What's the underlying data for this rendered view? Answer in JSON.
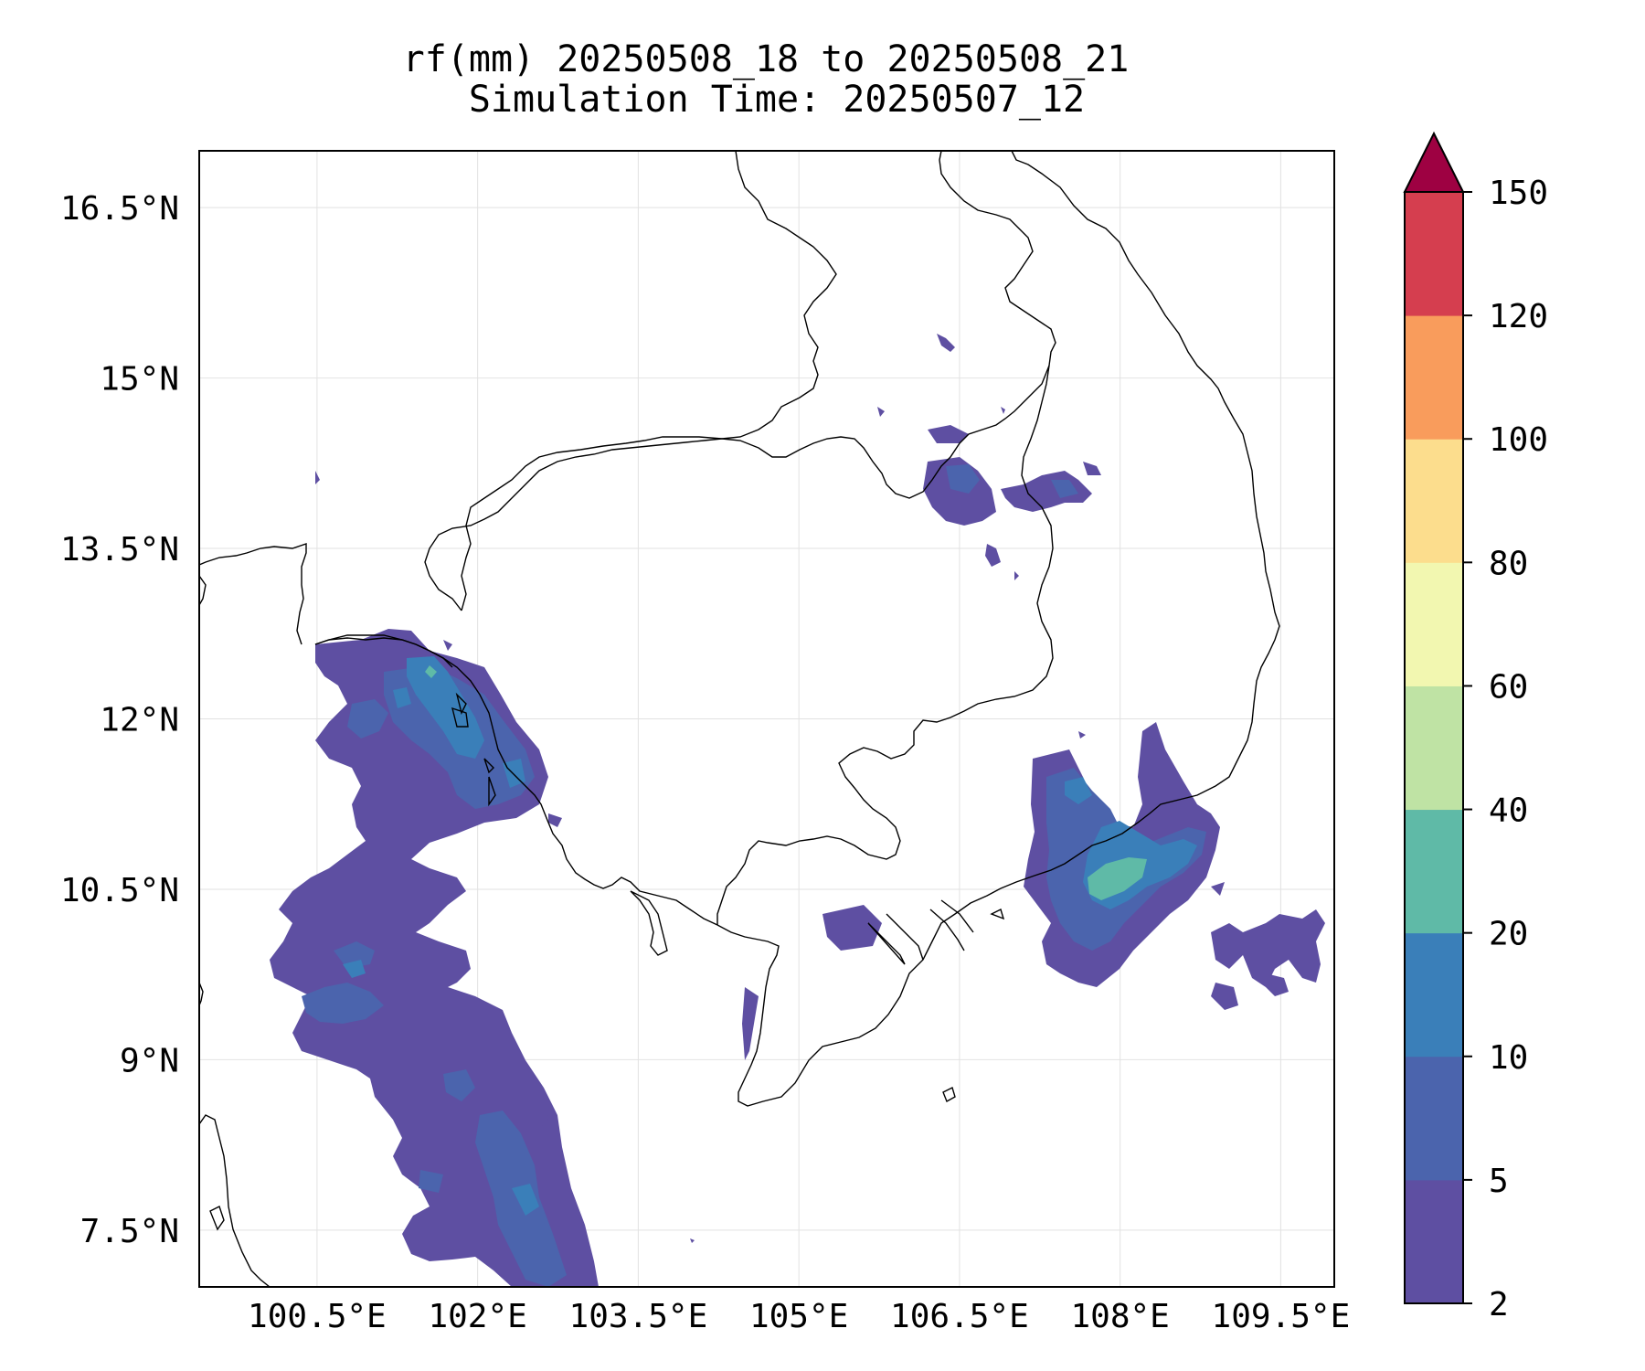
{
  "title": {
    "line1": "rf(mm) 20250508_18 to 20250508_21",
    "line2": "Simulation Time: 20250507_12"
  },
  "map": {
    "lon_range": [
      99.4,
      110.0
    ],
    "lat_range": [
      7.0,
      17.0
    ],
    "lon_ticks": [
      {
        "value": 100.5,
        "label": "100.5°E"
      },
      {
        "value": 102.0,
        "label": "102°E"
      },
      {
        "value": 103.5,
        "label": "103.5°E"
      },
      {
        "value": 105.0,
        "label": "105°E"
      },
      {
        "value": 106.5,
        "label": "106.5°E"
      },
      {
        "value": 108.0,
        "label": "108°E"
      },
      {
        "value": 109.5,
        "label": "109.5°E"
      }
    ],
    "lat_ticks": [
      {
        "value": 16.5,
        "label": "16.5°N"
      },
      {
        "value": 15.0,
        "label": "15°N"
      },
      {
        "value": 13.5,
        "label": "13.5°N"
      },
      {
        "value": 12.0,
        "label": "12°N"
      },
      {
        "value": 10.5,
        "label": "10.5°N"
      },
      {
        "value": 9.0,
        "label": "9°N"
      },
      {
        "value": 7.5,
        "label": "7.5°N"
      }
    ],
    "grid": true
  },
  "colorbar": {
    "levels": [
      {
        "label": "2",
        "color": "#5e4fa2"
      },
      {
        "label": "5",
        "color": "#4b64ad"
      },
      {
        "label": "10",
        "color": "#3a7fb9"
      },
      {
        "label": "20",
        "color": "#5fbaa7"
      },
      {
        "label": "40",
        "color": "#bfe3a4"
      },
      {
        "label": "60",
        "color": "#f2f7b0"
      },
      {
        "label": "80",
        "color": "#fcdd8d"
      },
      {
        "label": "100",
        "color": "#f99c5c"
      },
      {
        "label": "120",
        "color": "#d53e4f"
      },
      {
        "label": "150",
        "color": null
      }
    ],
    "extend_color": "#9e0142",
    "extend": "max"
  },
  "colors": {
    "light": "#5e4fa2",
    "moderate": "#4b64ad",
    "heavy": "#3a7fb9",
    "intense": "#5fbaa7"
  }
}
